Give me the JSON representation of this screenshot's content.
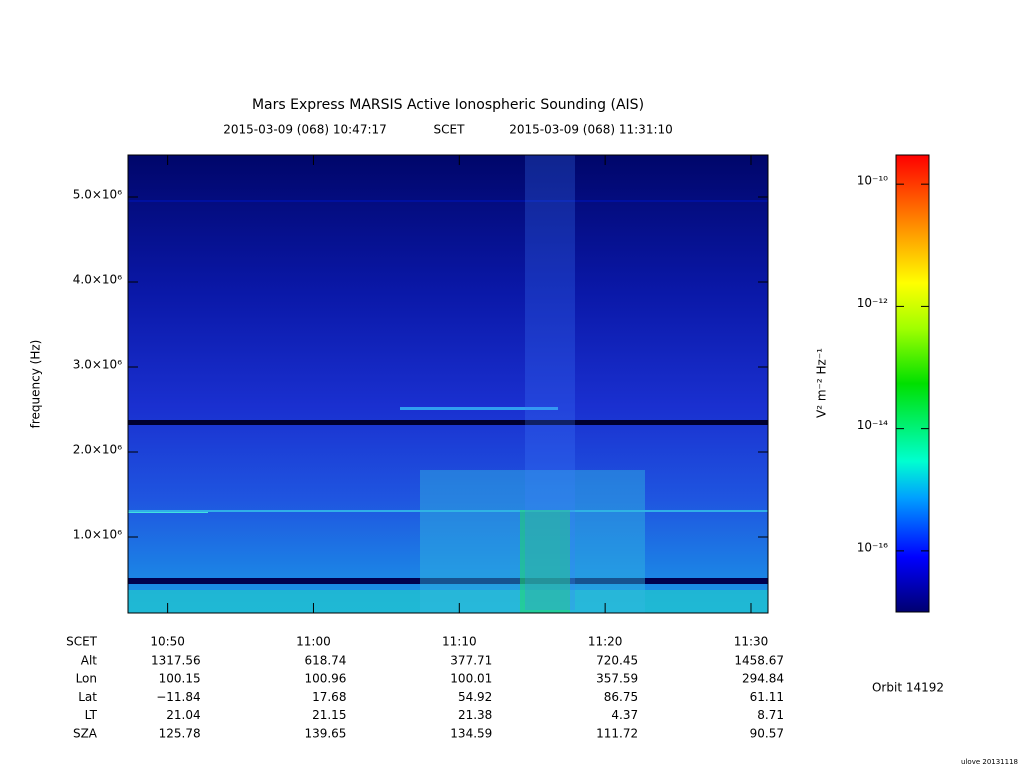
{
  "chart_data": {
    "type": "spectrogram",
    "title": "Mars Express MARSIS Active Ionospheric Sounding (AIS)",
    "time_start": "2015-03-09 (068) 10:47:17",
    "time_system": "SCET",
    "time_end": "2015-03-09 (068) 11:31:10",
    "ylabel": "frequency (Hz)",
    "ylim": [
      106000,
      5494000
    ],
    "yticks": [
      {
        "value": 1000000,
        "label": "1.0×10⁶"
      },
      {
        "value": 2000000,
        "label": "2.0×10⁶"
      },
      {
        "value": 3000000,
        "label": "3.0×10⁶"
      },
      {
        "value": 4000000,
        "label": "4.0×10⁶"
      },
      {
        "value": 5000000,
        "label": "5.0×10⁶"
      }
    ],
    "xticks": [
      "10:50",
      "11:00",
      "11:10",
      "11:20",
      "11:30"
    ],
    "colorbar": {
      "label": "V² m⁻² Hz⁻¹",
      "log": true,
      "zlim": [
        1e-17,
        3e-10
      ],
      "ticks": [
        {
          "value": 1e-16,
          "label": "10⁻¹⁶"
        },
        {
          "value": 1e-14,
          "label": "10⁻¹⁴"
        },
        {
          "value": 1e-12,
          "label": "10⁻¹²"
        },
        {
          "value": 1e-10,
          "label": "10⁻¹⁰"
        }
      ]
    },
    "ephemeris": {
      "time_label": "SCET",
      "rows": [
        {
          "name": "Alt",
          "values": [
            1317.56,
            618.74,
            377.71,
            720.45,
            1458.67
          ]
        },
        {
          "name": "Lon",
          "values": [
            100.15,
            100.96,
            100.01,
            357.59,
            294.84
          ]
        },
        {
          "name": "Lat",
          "values": [
            -11.84,
            17.68,
            54.92,
            86.75,
            61.11
          ]
        },
        {
          "name": "LT",
          "values": [
            21.04,
            21.15,
            21.38,
            4.37,
            8.71
          ]
        },
        {
          "name": "SZA",
          "values": [
            125.78,
            139.65,
            134.59,
            111.72,
            90.57
          ]
        }
      ]
    },
    "orbit": "Orbit 14192",
    "version": "ulove 20131118"
  }
}
